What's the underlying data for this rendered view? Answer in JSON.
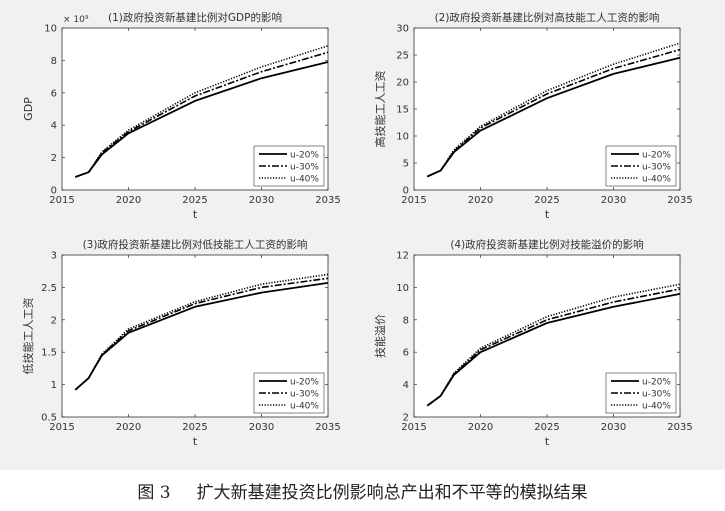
{
  "caption": {
    "label": "图 3",
    "text": "扩大新基建投资比例影响总产出和不平等的模拟结果"
  },
  "chart_data": [
    {
      "type": "line",
      "title": "(1)政府投资新基建比例对GDP的影响",
      "xlabel": "t",
      "ylabel": "GDP",
      "exponent_label": "× 10⁹",
      "xlim": [
        2015,
        2035
      ],
      "ylim": [
        0,
        10
      ],
      "xticks": [
        2015,
        2020,
        2025,
        2030,
        2035
      ],
      "yticks": [
        0,
        2,
        4,
        6,
        8,
        10
      ],
      "legend_position": "bottom-right",
      "x": [
        2016,
        2017,
        2018,
        2020,
        2025,
        2030,
        2035
      ],
      "series": [
        {
          "name": "u-20%",
          "style": "solid",
          "values": [
            0.8,
            1.1,
            2.2,
            3.5,
            5.5,
            6.9,
            7.9
          ]
        },
        {
          "name": "u-30%",
          "style": "dashdot",
          "values": [
            0.8,
            1.1,
            2.3,
            3.6,
            5.8,
            7.3,
            8.5
          ]
        },
        {
          "name": "u-40%",
          "style": "dotted",
          "values": [
            0.8,
            1.1,
            2.35,
            3.7,
            6.0,
            7.6,
            8.9
          ]
        }
      ]
    },
    {
      "type": "line",
      "title": "(2)政府投资新基建比例对高技能工人工资的影响",
      "xlabel": "t",
      "ylabel": "高技能工人工资",
      "xlim": [
        2015,
        2035
      ],
      "ylim": [
        0,
        30
      ],
      "xticks": [
        2015,
        2020,
        2025,
        2030,
        2035
      ],
      "yticks": [
        0,
        5,
        10,
        15,
        20,
        25,
        30
      ],
      "legend_position": "bottom-right",
      "x": [
        2016,
        2017,
        2018,
        2020,
        2025,
        2030,
        2035
      ],
      "series": [
        {
          "name": "u-20%",
          "style": "solid",
          "values": [
            2.5,
            3.6,
            7.0,
            11.0,
            17.0,
            21.5,
            24.5
          ]
        },
        {
          "name": "u-30%",
          "style": "dashdot",
          "values": [
            2.5,
            3.6,
            7.2,
            11.5,
            17.8,
            22.5,
            26.0
          ]
        },
        {
          "name": "u-40%",
          "style": "dotted",
          "values": [
            2.5,
            3.6,
            7.4,
            11.8,
            18.4,
            23.3,
            27.2
          ]
        }
      ]
    },
    {
      "type": "line",
      "title": "(3)政府投资新基建比例对低技能工人工资的影响",
      "xlabel": "t",
      "ylabel": "低技能工人工资",
      "xlim": [
        2015,
        2035
      ],
      "ylim": [
        0.5,
        3
      ],
      "xticks": [
        2015,
        2020,
        2025,
        2030,
        2035
      ],
      "yticks": [
        0.5,
        1,
        1.5,
        2,
        2.5,
        3
      ],
      "legend_position": "bottom-right",
      "x": [
        2016,
        2017,
        2018,
        2020,
        2025,
        2030,
        2035
      ],
      "series": [
        {
          "name": "u-20%",
          "style": "solid",
          "values": [
            0.92,
            1.1,
            1.45,
            1.8,
            2.2,
            2.42,
            2.57
          ]
        },
        {
          "name": "u-30%",
          "style": "dashdot",
          "values": [
            0.92,
            1.1,
            1.46,
            1.83,
            2.25,
            2.5,
            2.64
          ]
        },
        {
          "name": "u-40%",
          "style": "dotted",
          "values": [
            0.92,
            1.1,
            1.47,
            1.86,
            2.28,
            2.55,
            2.7
          ]
        }
      ]
    },
    {
      "type": "line",
      "title": "(4)政府投资新基建比例对技能溢价的影响",
      "xlabel": "t",
      "ylabel": "技能溢价",
      "xlim": [
        2015,
        2035
      ],
      "ylim": [
        2,
        12
      ],
      "xticks": [
        2015,
        2020,
        2025,
        2030,
        2035
      ],
      "yticks": [
        2,
        4,
        6,
        8,
        10,
        12
      ],
      "legend_position": "bottom-right",
      "x": [
        2016,
        2017,
        2018,
        2020,
        2025,
        2030,
        2035
      ],
      "series": [
        {
          "name": "u-20%",
          "style": "solid",
          "values": [
            2.7,
            3.3,
            4.6,
            6.0,
            7.8,
            8.8,
            9.6
          ]
        },
        {
          "name": "u-30%",
          "style": "dashdot",
          "values": [
            2.7,
            3.3,
            4.65,
            6.15,
            8.0,
            9.1,
            9.9
          ]
        },
        {
          "name": "u-40%",
          "style": "dotted",
          "values": [
            2.7,
            3.3,
            4.7,
            6.25,
            8.2,
            9.4,
            10.2
          ]
        }
      ]
    }
  ]
}
